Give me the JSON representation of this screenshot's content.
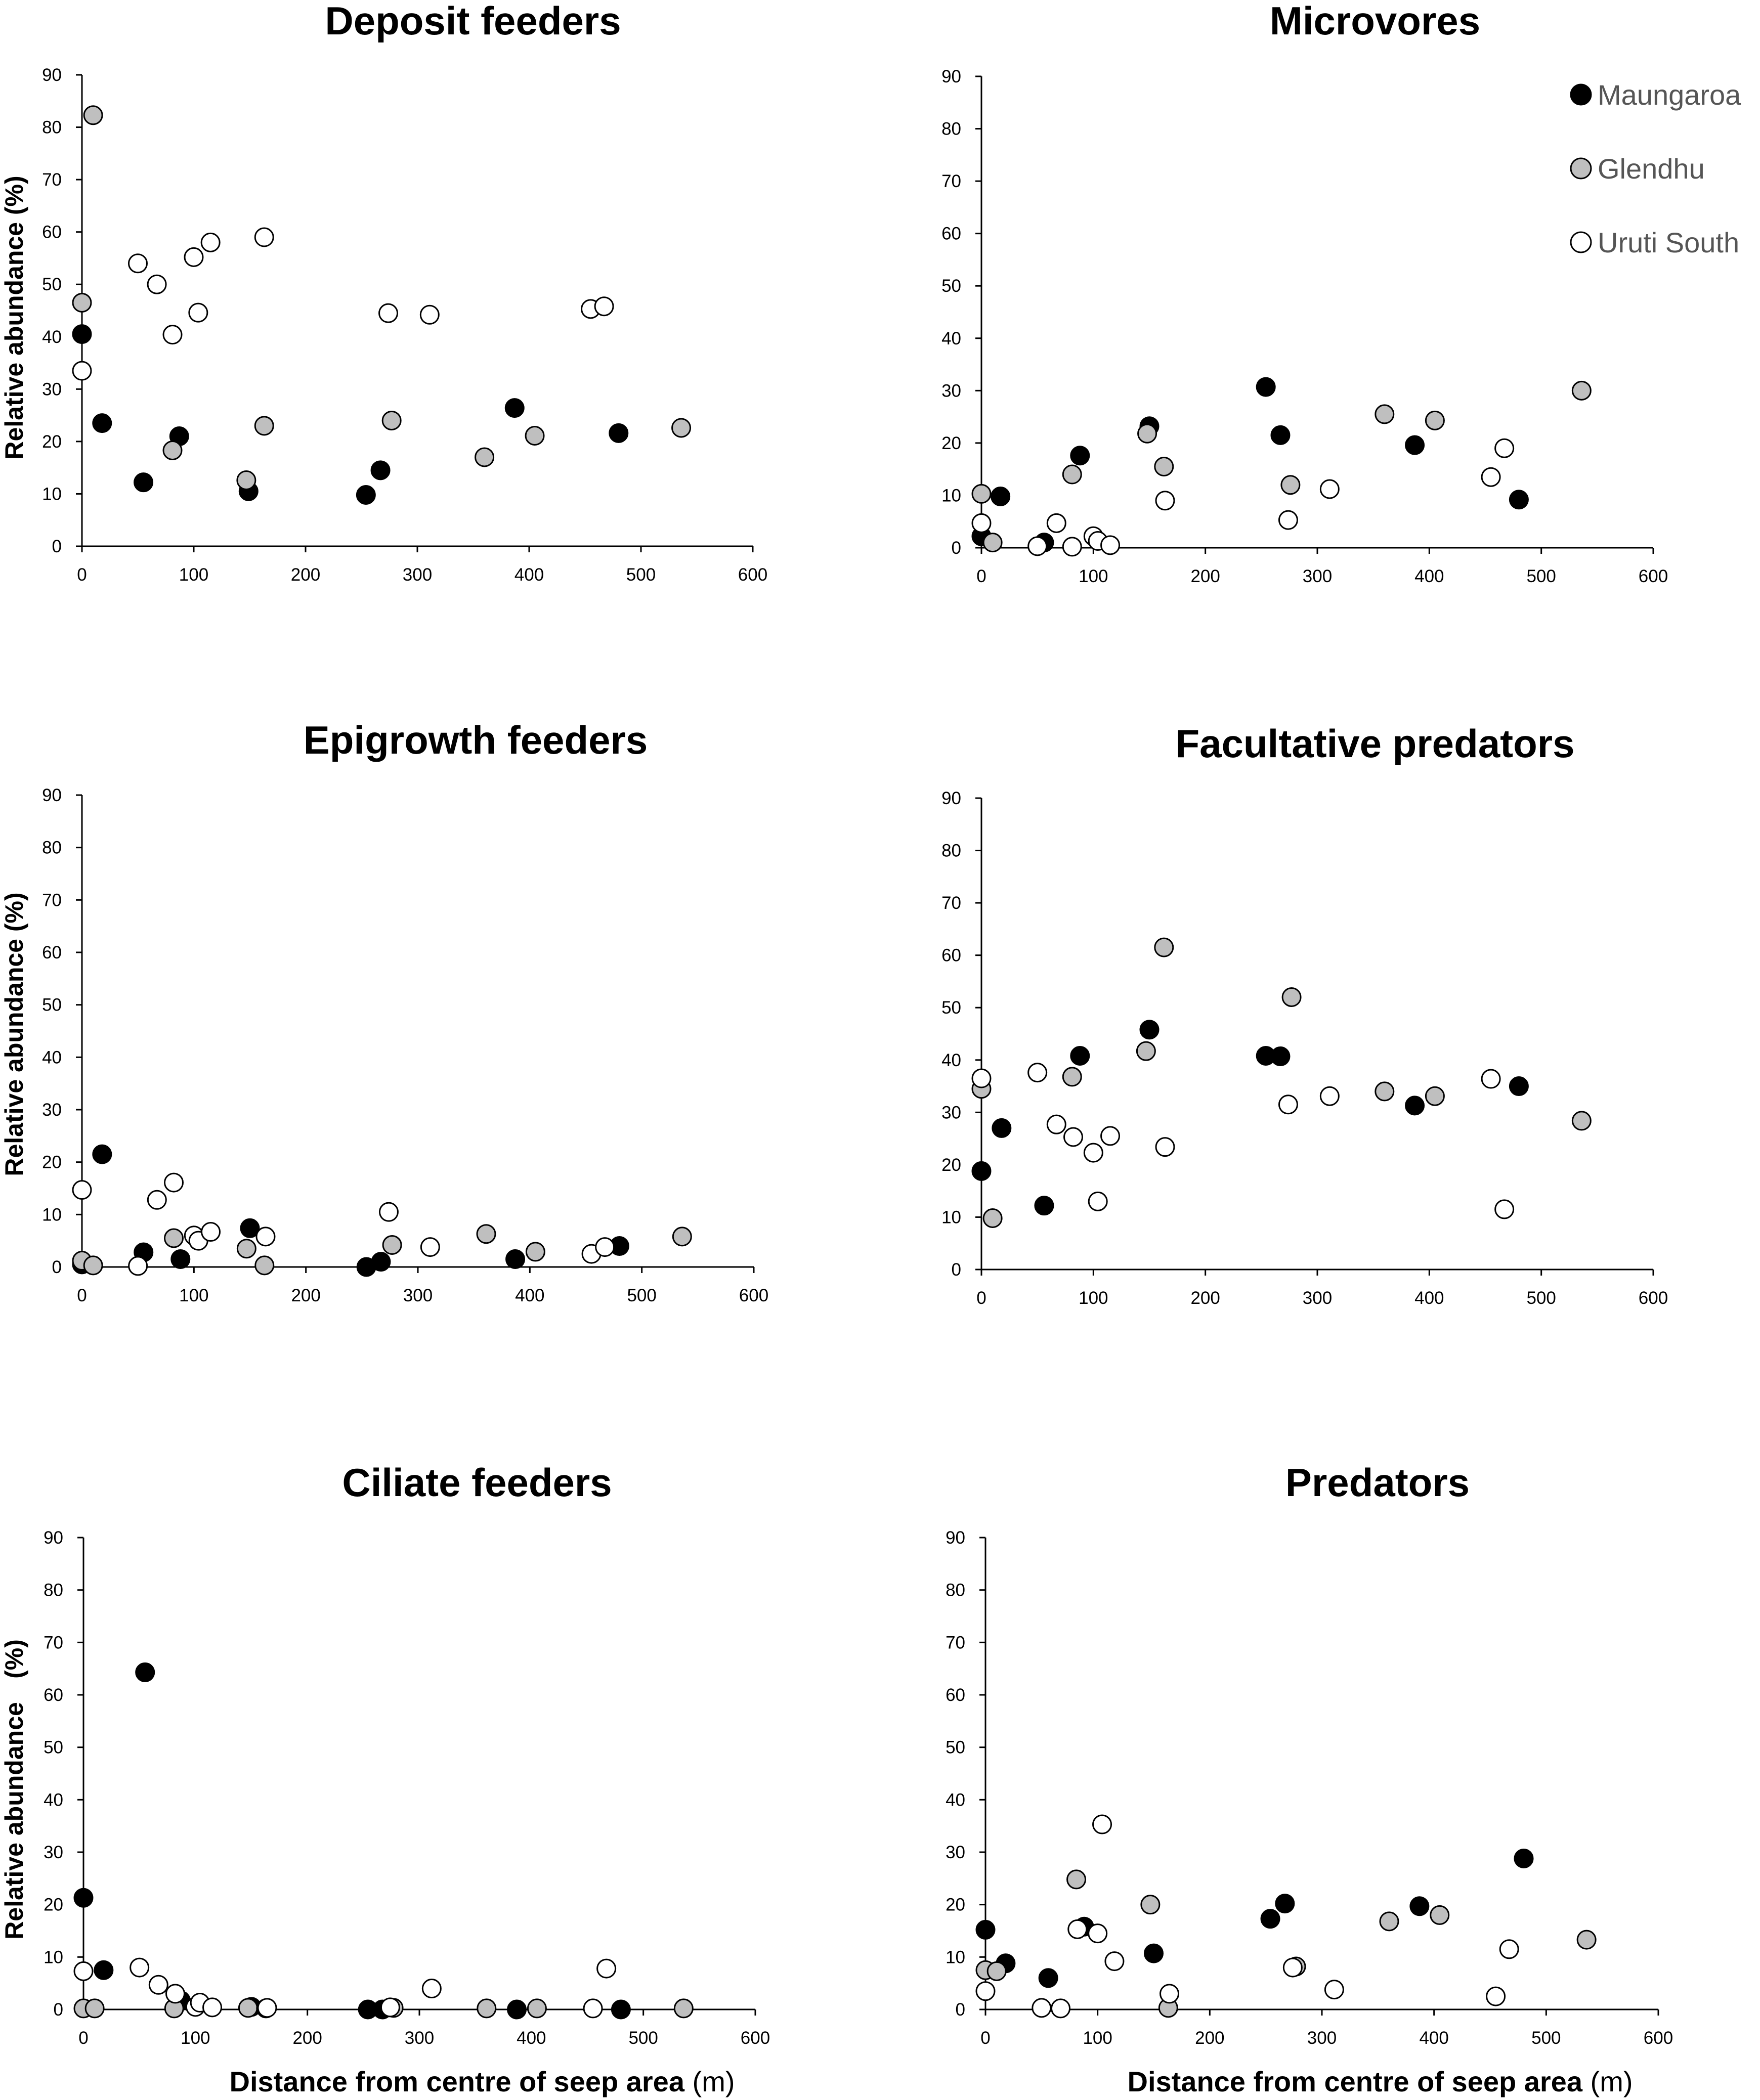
{
  "legend": [
    {
      "name": "Maungaroa",
      "fill": "#000000"
    },
    {
      "name": "Glendhu",
      "fill": "#bfbfbf"
    },
    {
      "name": "Uruti South",
      "fill": "#ffffff"
    }
  ],
  "colors": {
    "marker_stroke": "#000000",
    "axis": "#000000"
  },
  "axis_titles": {
    "y": "Relative abundance (%)",
    "y_short": "Relative abundance",
    "y_unit": "(%)",
    "x": "Distance from centre of seep area",
    "x_unit": "(m)"
  },
  "chart_data": [
    {
      "type": "scatter",
      "title": "Deposit feeders",
      "xlabel": "",
      "ylabel": "Relative abundance (%)",
      "xlim": [
        0,
        600
      ],
      "ylim": [
        0,
        90
      ],
      "xticks": [
        0,
        100,
        200,
        300,
        400,
        500,
        600
      ],
      "yticks": [
        0,
        10,
        20,
        30,
        40,
        50,
        60,
        70,
        80,
        90
      ],
      "series": [
        {
          "name": "Maungaroa",
          "points": [
            [
              0,
              40.5
            ],
            [
              18,
              23.5
            ],
            [
              55,
              12.2
            ],
            [
              87,
              21
            ],
            [
              149,
              10.5
            ],
            [
              254,
              9.8
            ],
            [
              267,
              14.5
            ],
            [
              387,
              26.4
            ],
            [
              480,
              21.6
            ]
          ]
        },
        {
          "name": "Glendhu",
          "points": [
            [
              0,
              46.5
            ],
            [
              10,
              82.3
            ],
            [
              81,
              18.3
            ],
            [
              147,
              12.6
            ],
            [
              163,
              23
            ],
            [
              277,
              24
            ],
            [
              360,
              17
            ],
            [
              405,
              21.1
            ],
            [
              536,
              22.6
            ]
          ]
        },
        {
          "name": "Uruti South",
          "points": [
            [
              0,
              33.5
            ],
            [
              50,
              54
            ],
            [
              67,
              50
            ],
            [
              81,
              40.4
            ],
            [
              100,
              55.2
            ],
            [
              104,
              44.6
            ],
            [
              115,
              58
            ],
            [
              163,
              59
            ],
            [
              274,
              44.5
            ],
            [
              311,
              44.2
            ],
            [
              455,
              45.3
            ],
            [
              467,
              45.8
            ]
          ]
        }
      ]
    },
    {
      "type": "scatter",
      "title": "Microvores",
      "xlabel": "",
      "ylabel": "",
      "xlim": [
        0,
        600
      ],
      "ylim": [
        0,
        90
      ],
      "xticks": [
        0,
        100,
        200,
        300,
        400,
        500,
        600
      ],
      "yticks": [
        0,
        10,
        20,
        30,
        40,
        50,
        60,
        70,
        80,
        90
      ],
      "series": [
        {
          "name": "Maungaroa",
          "points": [
            [
              0,
              2.2
            ],
            [
              17,
              9.8
            ],
            [
              56,
              1
            ],
            [
              88,
              17.6
            ],
            [
              150,
              23.2
            ],
            [
              254,
              30.7
            ],
            [
              267,
              21.5
            ],
            [
              387,
              19.6
            ],
            [
              480,
              9.2
            ]
          ]
        },
        {
          "name": "Glendhu",
          "points": [
            [
              0,
              10.3
            ],
            [
              10,
              1
            ],
            [
              81,
              14
            ],
            [
              148,
              21.8
            ],
            [
              163,
              15.5
            ],
            [
              276,
              12
            ],
            [
              360,
              25.5
            ],
            [
              405,
              24.3
            ],
            [
              536,
              30
            ]
          ]
        },
        {
          "name": "Uruti South",
          "points": [
            [
              0,
              4.7
            ],
            [
              50,
              0.3
            ],
            [
              67,
              4.7
            ],
            [
              81,
              0.2
            ],
            [
              100,
              2.2
            ],
            [
              104,
              1.3
            ],
            [
              115,
              0.5
            ],
            [
              164,
              9
            ],
            [
              274,
              5.3
            ],
            [
              311,
              11.2
            ],
            [
              455,
              13.5
            ],
            [
              467,
              19
            ]
          ]
        }
      ]
    },
    {
      "type": "scatter",
      "title": "Epigrowth feeders",
      "xlabel": "",
      "ylabel": "Relative abundance (%)",
      "xlim": [
        0,
        600
      ],
      "ylim": [
        0,
        90
      ],
      "xticks": [
        0,
        100,
        200,
        300,
        400,
        500,
        600
      ],
      "yticks": [
        0,
        10,
        20,
        30,
        40,
        50,
        60,
        70,
        80,
        90
      ],
      "series": [
        {
          "name": "Maungaroa",
          "points": [
            [
              0,
              0.5
            ],
            [
              18,
              21.5
            ],
            [
              55,
              2.8
            ],
            [
              88,
              1.5
            ],
            [
              150,
              7.4
            ],
            [
              254,
              0
            ],
            [
              267,
              1
            ],
            [
              387,
              1.5
            ],
            [
              480,
              4
            ]
          ]
        },
        {
          "name": "Glendhu",
          "points": [
            [
              0,
              1.2
            ],
            [
              10,
              0.3
            ],
            [
              82,
              5.5
            ],
            [
              147,
              3.5
            ],
            [
              163,
              0.3
            ],
            [
              277,
              4.2
            ],
            [
              361,
              6.3
            ],
            [
              405,
              2.9
            ],
            [
              536,
              5.8
            ]
          ]
        },
        {
          "name": "Uruti South",
          "points": [
            [
              0,
              14.7
            ],
            [
              50,
              0.2
            ],
            [
              67,
              12.8
            ],
            [
              82,
              16.1
            ],
            [
              100,
              6
            ],
            [
              104,
              5
            ],
            [
              115,
              6.7
            ],
            [
              164,
              5.8
            ],
            [
              274,
              10.5
            ],
            [
              311,
              3.8
            ],
            [
              455,
              2.5
            ],
            [
              467,
              3.8
            ]
          ]
        }
      ]
    },
    {
      "type": "scatter",
      "title": "Facultative predators",
      "xlabel": "",
      "ylabel": "",
      "xlim": [
        0,
        600
      ],
      "ylim": [
        0,
        90
      ],
      "xticks": [
        0,
        100,
        200,
        300,
        400,
        500,
        600
      ],
      "yticks": [
        0,
        10,
        20,
        30,
        40,
        50,
        60,
        70,
        80,
        90
      ],
      "series": [
        {
          "name": "Maungaroa",
          "points": [
            [
              0,
              18.8
            ],
            [
              18,
              27
            ],
            [
              56,
              12.2
            ],
            [
              88,
              40.8
            ],
            [
              150,
              45.8
            ],
            [
              254,
              40.8
            ],
            [
              267,
              40.7
            ],
            [
              387,
              31.3
            ],
            [
              480,
              35
            ]
          ]
        },
        {
          "name": "Glendhu",
          "points": [
            [
              0,
              34.5
            ],
            [
              10,
              9.8
            ],
            [
              81,
              36.8
            ],
            [
              147,
              41.7
            ],
            [
              163,
              61.5
            ],
            [
              277,
              52
            ],
            [
              360,
              34
            ],
            [
              405,
              33.1
            ],
            [
              536,
              28.4
            ]
          ]
        },
        {
          "name": "Uruti South",
          "points": [
            [
              0,
              36.5
            ],
            [
              50,
              37.6
            ],
            [
              67,
              27.7
            ],
            [
              82,
              25.3
            ],
            [
              100,
              22.3
            ],
            [
              104,
              13
            ],
            [
              115,
              25.5
            ],
            [
              164,
              23.4
            ],
            [
              274,
              31.5
            ],
            [
              311,
              33.1
            ],
            [
              455,
              36.4
            ],
            [
              467,
              11.5
            ]
          ]
        }
      ]
    },
    {
      "type": "scatter",
      "title": "Ciliate feeders",
      "xlabel": "Distance from centre of seep area (m)",
      "ylabel": "Relative abundance (%)",
      "xlim": [
        0,
        600
      ],
      "ylim": [
        0,
        90
      ],
      "xticks": [
        0,
        100,
        200,
        300,
        400,
        500,
        600
      ],
      "yticks": [
        0,
        10,
        20,
        30,
        40,
        50,
        60,
        70,
        80,
        90
      ],
      "series": [
        {
          "name": "Maungaroa",
          "points": [
            [
              0,
              21.3
            ],
            [
              18,
              7.5
            ],
            [
              55,
              64.3
            ],
            [
              87,
              1.7
            ],
            [
              150,
              0.5
            ],
            [
              254,
              0
            ],
            [
              267,
              0
            ],
            [
              387,
              0
            ],
            [
              480,
              0
            ]
          ]
        },
        {
          "name": "Glendhu",
          "points": [
            [
              0,
              0.2
            ],
            [
              10,
              0.2
            ],
            [
              81,
              0.2
            ],
            [
              147,
              0.3
            ],
            [
              163,
              0.2
            ],
            [
              277,
              0.3
            ],
            [
              360,
              0.2
            ],
            [
              405,
              0.2
            ],
            [
              536,
              0.2
            ]
          ]
        },
        {
          "name": "Uruti South",
          "points": [
            [
              0,
              7.3
            ],
            [
              50,
              8
            ],
            [
              67,
              4.7
            ],
            [
              82,
              3
            ],
            [
              100,
              0.5
            ],
            [
              104,
              1.3
            ],
            [
              115,
              0.4
            ],
            [
              164,
              0.3
            ],
            [
              274,
              0.4
            ],
            [
              311,
              4
            ],
            [
              455,
              0.2
            ],
            [
              467,
              7.8
            ]
          ]
        }
      ]
    },
    {
      "type": "scatter",
      "title": "Predators",
      "xlabel": "Distance from centre of seep area (m)",
      "ylabel": "",
      "xlim": [
        0,
        600
      ],
      "ylim": [
        0,
        90
      ],
      "xticks": [
        0,
        100,
        200,
        300,
        400,
        500,
        600
      ],
      "yticks": [
        0,
        10,
        20,
        30,
        40,
        50,
        60,
        70,
        80,
        90
      ],
      "series": [
        {
          "name": "Maungaroa",
          "points": [
            [
              0,
              15.2
            ],
            [
              18,
              8.8
            ],
            [
              56,
              6
            ],
            [
              88,
              15.8
            ],
            [
              150,
              10.7
            ],
            [
              254,
              17.3
            ],
            [
              267,
              20.2
            ],
            [
              387,
              19.7
            ],
            [
              480,
              28.8
            ]
          ]
        },
        {
          "name": "Glendhu",
          "points": [
            [
              0,
              7.5
            ],
            [
              10,
              7.3
            ],
            [
              81,
              24.8
            ],
            [
              147,
              20
            ],
            [
              163,
              0.3
            ],
            [
              277,
              8.2
            ],
            [
              360,
              16.8
            ],
            [
              405,
              18
            ],
            [
              536,
              13.3
            ]
          ]
        },
        {
          "name": "Uruti South",
          "points": [
            [
              0,
              3.5
            ],
            [
              50,
              0.3
            ],
            [
              67,
              0.2
            ],
            [
              82,
              15.3
            ],
            [
              100,
              14.5
            ],
            [
              104,
              35.3
            ],
            [
              115,
              9.2
            ],
            [
              164,
              3
            ],
            [
              274,
              8
            ],
            [
              311,
              3.8
            ],
            [
              455,
              2.5
            ],
            [
              467,
              11.5
            ]
          ]
        }
      ]
    }
  ]
}
